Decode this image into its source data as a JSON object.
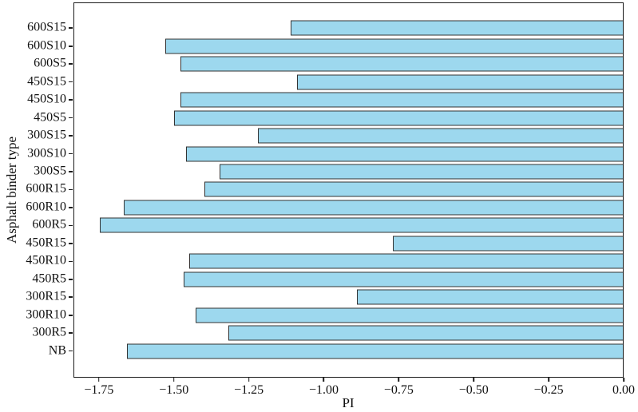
{
  "figure": {
    "xlabel": "PI",
    "ylabel": "Asphalt binder type"
  },
  "chart_data": {
    "type": "bar",
    "orientation": "horizontal",
    "title": "",
    "xlabel": "PI",
    "ylabel": "Asphalt binder type",
    "categories_top_to_bottom": [
      "600S15",
      "600S10",
      "600S5",
      "450S15",
      "450S10",
      "450S5",
      "300S15",
      "300S10",
      "300S5",
      "600R15",
      "600R10",
      "600R5",
      "450R15",
      "450R10",
      "450R5",
      "300R15",
      "300R10",
      "300R5",
      "NB"
    ],
    "values": [
      -1.11,
      -1.53,
      -1.48,
      -1.09,
      -1.48,
      -1.5,
      -1.22,
      -1.46,
      -1.35,
      -1.4,
      -1.67,
      -1.75,
      -0.77,
      -1.45,
      -1.47,
      -0.89,
      -1.43,
      -1.32,
      -1.66
    ],
    "xlim": [
      -1.835,
      0
    ],
    "xticks": [
      -1.75,
      -1.5,
      -1.25,
      -1.0,
      -0.75,
      -0.5,
      -0.25,
      0
    ],
    "xtick_labels": [
      "−1.75",
      "−1.50",
      "−1.25",
      "−1.00",
      "−0.75",
      "−0.50",
      "−0.25",
      "0.00"
    ],
    "grid": false,
    "legend": "none",
    "bar_color": "#9DD8EE",
    "bar_edge_color": "#333333",
    "axis_color": "#1a1a1a"
  }
}
